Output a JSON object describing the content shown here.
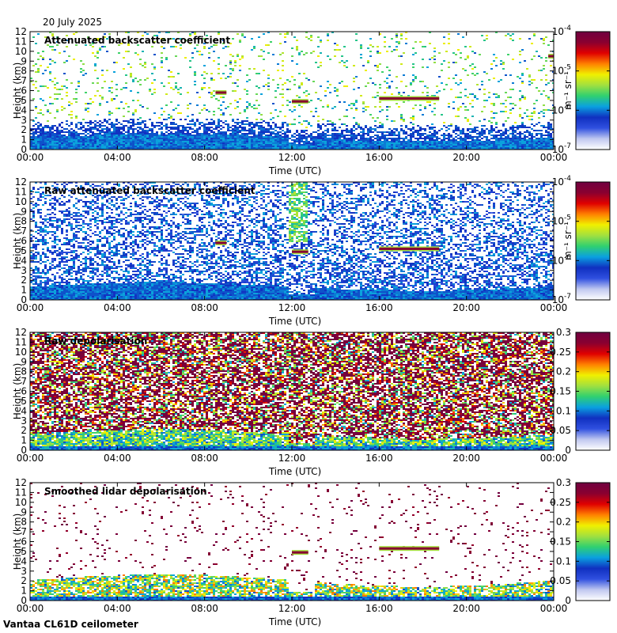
{
  "date_label": "20 July 2025",
  "footer": "Vantaa CL61D ceilometer",
  "colorbar_gradient": [
    "#ffffff",
    "#c0c8f0",
    "#3050e0",
    "#1030c0",
    "#0aa0e0",
    "#30d070",
    "#a0e040",
    "#f0f000",
    "#ff8000",
    "#e00000",
    "#8a0030",
    "#700040"
  ],
  "chart_data": [
    {
      "type": "heatmap",
      "title": "Attenuated backscatter coefficient",
      "xlabel": "Time (UTC)",
      "ylabel": "Height (km)",
      "x_ticks": [
        "00:00",
        "04:00",
        "08:00",
        "12:00",
        "16:00",
        "20:00",
        "00:00"
      ],
      "y_ticks": [
        "0",
        "1",
        "2",
        "3",
        "4",
        "5",
        "6",
        "7",
        "8",
        "9",
        "10",
        "11",
        "12"
      ],
      "ylim": [
        0,
        12
      ],
      "colorbar": {
        "scale": "log",
        "range": [
          1e-07,
          0.0001
        ],
        "unit_label": "m⁻¹ sr⁻¹",
        "ticks": [
          {
            "mantissa": "10",
            "exp": "-4"
          },
          {
            "mantissa": "10",
            "exp": "-5"
          },
          {
            "mantissa": "10",
            "exp": "-6"
          },
          {
            "mantissa": "10",
            "exp": "-7"
          }
        ]
      },
      "features": [
        {
          "kind": "boundary_layer",
          "height_km": 1.5
        },
        {
          "kind": "aerosol_layer",
          "height_km": 3.0
        },
        {
          "kind": "cloud_layer",
          "start": "16:00",
          "end": "18:45",
          "height_km": 5.2
        },
        {
          "kind": "cloud_layer",
          "start": "12:00",
          "end": "12:45",
          "height_km": 4.9
        },
        {
          "kind": "cloud_layer",
          "start": "08:30",
          "end": "09:00",
          "height_km": 5.8
        },
        {
          "kind": "cloud_layer",
          "start": "23:45",
          "end": "24:00",
          "height_km": 9.5
        }
      ]
    },
    {
      "type": "heatmap",
      "title": "Raw attenuated backscatter coefficient",
      "xlabel": "Time (UTC)",
      "ylabel": "Height (km)",
      "x_ticks": [
        "00:00",
        "04:00",
        "08:00",
        "12:00",
        "16:00",
        "20:00",
        "00:00"
      ],
      "y_ticks": [
        "0",
        "1",
        "2",
        "3",
        "4",
        "5",
        "6",
        "7",
        "8",
        "9",
        "10",
        "11",
        "12"
      ],
      "ylim": [
        0,
        12
      ],
      "colorbar": {
        "scale": "log",
        "range": [
          1e-07,
          0.0001
        ],
        "unit_label": "m⁻¹ sr⁻¹",
        "ticks": [
          {
            "mantissa": "10",
            "exp": "-4"
          },
          {
            "mantissa": "10",
            "exp": "-5"
          },
          {
            "mantissa": "10",
            "exp": "-6"
          },
          {
            "mantissa": "10",
            "exp": "-7"
          }
        ]
      },
      "features": [
        {
          "kind": "boundary_layer",
          "height_km": 1.7
        },
        {
          "kind": "cloud_layer",
          "start": "16:00",
          "end": "18:45",
          "height_km": 5.2
        },
        {
          "kind": "cloud_layer",
          "start": "12:00",
          "end": "12:45",
          "height_km": 4.9
        },
        {
          "kind": "cloud_layer",
          "start": "08:30",
          "end": "09:00",
          "height_km": 5.8
        }
      ]
    },
    {
      "type": "heatmap",
      "title": "Raw depolarisation",
      "xlabel": "Time (UTC)",
      "ylabel": "Height (km)",
      "x_ticks": [
        "00:00",
        "04:00",
        "08:00",
        "12:00",
        "16:00",
        "20:00",
        "00:00"
      ],
      "y_ticks": [
        "0",
        "1",
        "2",
        "3",
        "4",
        "5",
        "6",
        "7",
        "8",
        "9",
        "10",
        "11",
        "12"
      ],
      "ylim": [
        0,
        12
      ],
      "colorbar": {
        "scale": "linear",
        "range": [
          0,
          0.3
        ],
        "ticks": [
          "0.3",
          "0.25",
          "0.2",
          "0.15",
          "0.1",
          "0.05",
          "0"
        ]
      },
      "features": [
        {
          "kind": "boundary_layer",
          "height_km": 2.0
        },
        {
          "kind": "noise",
          "above_km": 2.5
        }
      ]
    },
    {
      "type": "heatmap",
      "title": "Smoothed lidar depolarisation",
      "xlabel": "Time (UTC)",
      "ylabel": "Height (km)",
      "x_ticks": [
        "00:00",
        "04:00",
        "08:00",
        "12:00",
        "16:00",
        "20:00",
        "00:00"
      ],
      "y_ticks": [
        "0",
        "1",
        "2",
        "3",
        "4",
        "5",
        "6",
        "7",
        "8",
        "9",
        "10",
        "11",
        "12"
      ],
      "ylim": [
        0,
        12
      ],
      "colorbar": {
        "scale": "linear",
        "range": [
          0,
          0.3
        ],
        "ticks": [
          "0.3",
          "0.25",
          "0.2",
          "0.15",
          "0.1",
          "0.05",
          "0"
        ]
      },
      "features": [
        {
          "kind": "boundary_layer",
          "height_km": 2.5
        },
        {
          "kind": "cloud_layer",
          "start": "16:00",
          "end": "18:45",
          "height_km": 5.3
        },
        {
          "kind": "cloud_layer",
          "start": "12:00",
          "end": "12:45",
          "height_km": 4.9
        }
      ]
    }
  ]
}
